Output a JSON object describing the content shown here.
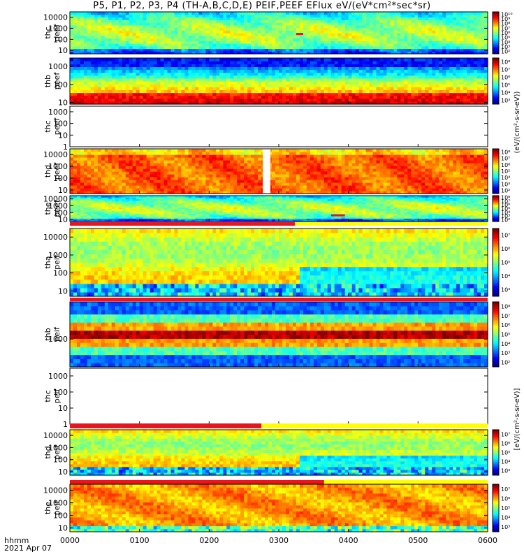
{
  "title": "P5, P1, P2, P3, P4 (TH-A,B,C,D,E) PEIF,PEEF EFlux eV/(eV*cm²*sec*sr)",
  "time_label": "hhmm",
  "date_label": "2021 Apr 07",
  "colorbar_label_eeflux": "(eV/(cm²-s-sr-eV))",
  "colorbar_label_ieflux": "[eV/(cm²-s-sr-eV)]",
  "colors": {
    "red_bar": "#e8141e",
    "yellow_bar": "#ffff00",
    "white_gap": "#ffffff"
  },
  "chart_data": {
    "type": "heatmap",
    "x_label": "hhmm",
    "x_ticks": [
      "0000",
      "0100",
      "0200",
      "0300",
      "0400",
      "0500",
      "0600"
    ],
    "xlim": [
      "0000",
      "0600"
    ],
    "panels": [
      {
        "name": "thc peef",
        "label_top": "thc",
        "label_bottom": "peef",
        "yscale": "log",
        "yticks": [
          "10",
          "100",
          "1000",
          "10000"
        ],
        "ylim": [
          5,
          30000
        ],
        "cbar_ticks": [
          "10²",
          "10³",
          "10⁴",
          "10⁵",
          "10⁶",
          "10⁷",
          "10⁸",
          "10⁹",
          "10¹⁰"
        ],
        "profile": "green",
        "red_segments": [
          [
            325,
            335
          ]
        ]
      },
      {
        "name": "thb peef",
        "label_top": "thb",
        "label_bottom": "peef",
        "yscale": "log",
        "yticks": [
          "10",
          "100",
          "1000"
        ],
        "ylim": [
          8,
          3000
        ],
        "cbar_ticks": [
          "10³",
          "10⁴",
          "10⁵",
          "10⁶",
          "10⁷",
          "10⁸"
        ],
        "profile": "thb_e"
      },
      {
        "name": "thc peef",
        "label_top": "thc",
        "label_bottom": "peef",
        "yscale": "log",
        "yticks": [
          "1",
          "10",
          "100",
          "1000"
        ],
        "ylim": [
          1,
          3000
        ],
        "empty": true
      },
      {
        "name": "thd peef",
        "label_top": "thd",
        "label_bottom": "peef",
        "yscale": "log",
        "yticks": [
          "10",
          "100",
          "1000",
          "10000"
        ],
        "ylim": [
          5,
          30000
        ],
        "cbar_ticks": [
          "10²",
          "10³",
          "10⁴",
          "10⁵",
          "10⁶",
          "10⁷",
          "10⁸"
        ],
        "profile": "orange",
        "gaps": [
          [
            277,
            288
          ]
        ]
      },
      {
        "name": "the peef",
        "label_top": "the",
        "label_bottom": "peef",
        "yscale": "log",
        "yticks": [
          "10",
          "100",
          "1000",
          "10000"
        ],
        "ylim": [
          5,
          30000
        ],
        "cbar_ticks": [
          "10²",
          "10³",
          "10⁴",
          "10⁵",
          "10⁶",
          "10⁷",
          "10⁸"
        ],
        "profile": "green",
        "red_segments": [
          [
            375,
            395
          ]
        ],
        "status_bar": [
          0,
          323
        ]
      },
      {
        "name": "tha peif",
        "label_top": "tha",
        "label_bottom": "peif",
        "yscale": "log",
        "yticks": [
          "10",
          "100",
          "1000",
          "10000"
        ],
        "ylim": [
          5,
          30000
        ],
        "cbar_ticks": [
          "10³",
          "10⁴",
          "10⁵",
          "10⁶",
          "10⁷"
        ],
        "profile": "ion",
        "status_bar": [
          0,
          600
        ]
      },
      {
        "name": "thb peif",
        "label_top": "thb",
        "label_bottom": "peif",
        "yscale": "log",
        "yticks": [
          "1000"
        ],
        "ylim": [
          300,
          5000
        ],
        "cbar_ticks": [
          "10²",
          "10³",
          "10⁴",
          "10⁵",
          "10⁶",
          "10⁷",
          "10⁸"
        ],
        "profile": "thb_i"
      },
      {
        "name": "thc peif",
        "label_top": "thc",
        "label_bottom": "peif",
        "yscale": "log",
        "yticks": [
          "1",
          "10",
          "100",
          "1000"
        ],
        "ylim": [
          1,
          3000
        ],
        "empty": true
      },
      {
        "name": "thd peif",
        "label_top": "thd",
        "label_bottom": "peif",
        "yscale": "log",
        "yticks": [
          "10",
          "100",
          "1000",
          "10000"
        ],
        "ylim": [
          5,
          30000
        ],
        "cbar_ticks": [
          "10³",
          "10⁴",
          "10⁵",
          "10⁶",
          "10⁷"
        ],
        "profile": "ion",
        "status_bar": [
          0,
          275
        ]
      },
      {
        "name": "the peif",
        "label_top": "the",
        "label_bottom": "peif",
        "yscale": "log",
        "yticks": [
          "10",
          "100",
          "1000",
          "10000"
        ],
        "ylim": [
          5,
          30000
        ],
        "cbar_ticks": [
          "10³",
          "10⁴",
          "10⁵",
          "10⁶",
          "10⁷"
        ],
        "profile": "ion_warm",
        "status_bar": [
          0,
          365
        ]
      }
    ]
  }
}
